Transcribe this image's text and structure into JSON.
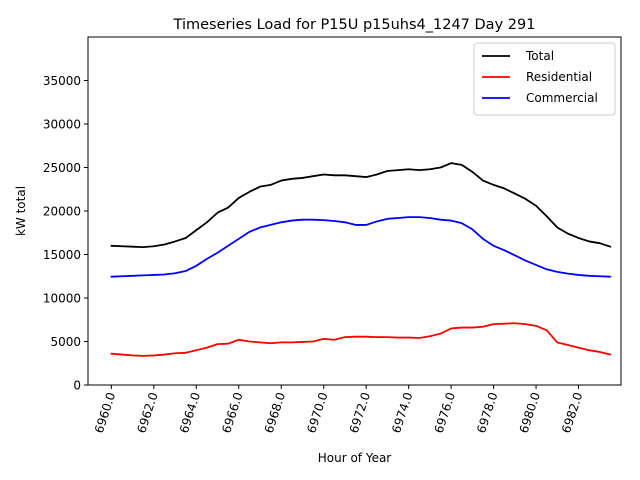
{
  "chart_data": {
    "type": "line",
    "title": "Timeseries Load for P15U p15uhs4_1247  Day 291",
    "xlabel": "Hour of Year",
    "ylabel": "kW total",
    "xlim": [
      6958.9,
      6984.0
    ],
    "ylim": [
      0,
      40000
    ],
    "xticks": [
      6960,
      6962,
      6964,
      6966,
      6968,
      6970,
      6972,
      6974,
      6976,
      6978,
      6980,
      6982
    ],
    "xtick_labels": [
      "6960.0",
      "6962.0",
      "6964.0",
      "6966.0",
      "6968.0",
      "6970.0",
      "6972.0",
      "6974.0",
      "6976.0",
      "6978.0",
      "6980.0",
      "6982.0"
    ],
    "yticks": [
      0,
      5000,
      10000,
      15000,
      20000,
      25000,
      30000,
      35000
    ],
    "ytick_labels": [
      "0",
      "5000",
      "10000",
      "15000",
      "20000",
      "25000",
      "30000",
      "35000"
    ],
    "legend_position": "top-right",
    "x": [
      6960.0,
      6960.5,
      6961.0,
      6961.5,
      6962.0,
      6962.5,
      6963.0,
      6963.5,
      6964.0,
      6964.5,
      6965.0,
      6965.5,
      6966.0,
      6966.5,
      6967.0,
      6967.5,
      6968.0,
      6968.5,
      6969.0,
      6969.5,
      6970.0,
      6970.5,
      6971.0,
      6971.5,
      6972.0,
      6972.5,
      6973.0,
      6973.5,
      6974.0,
      6974.5,
      6975.0,
      6975.5,
      6976.0,
      6976.5,
      6977.0,
      6977.5,
      6978.0,
      6978.5,
      6979.0,
      6979.5,
      6980.0,
      6980.5,
      6981.0,
      6981.5,
      6982.0,
      6982.5,
      6983.0,
      6983.5
    ],
    "series": [
      {
        "name": "Total",
        "color": "#000000",
        "values": [
          16000,
          15950,
          15900,
          15850,
          15950,
          16150,
          16500,
          16900,
          17800,
          18700,
          19800,
          20400,
          21500,
          22200,
          22800,
          23000,
          23500,
          23700,
          23800,
          24000,
          24200,
          24100,
          24100,
          24000,
          23900,
          24200,
          24600,
          24700,
          24800,
          24700,
          24800,
          25000,
          25500,
          25300,
          24500,
          23500,
          23000,
          22600,
          22000,
          21400,
          20600,
          19400,
          18100,
          17400,
          16900,
          16500,
          16300,
          15900
        ]
      },
      {
        "name": "Residential",
        "color": "#ff0000",
        "values": [
          3600,
          3500,
          3400,
          3350,
          3400,
          3500,
          3650,
          3700,
          4000,
          4300,
          4700,
          4750,
          5200,
          5000,
          4900,
          4800,
          4900,
          4900,
          4950,
          5000,
          5300,
          5200,
          5500,
          5550,
          5550,
          5500,
          5500,
          5450,
          5450,
          5400,
          5600,
          5900,
          6500,
          6600,
          6600,
          6700,
          7000,
          7050,
          7100,
          7000,
          6800,
          6300,
          4900,
          4600,
          4300,
          4000,
          3800,
          3500
        ]
      },
      {
        "name": "Commercial",
        "color": "#0000ff",
        "values": [
          12450,
          12500,
          12550,
          12600,
          12650,
          12700,
          12850,
          13100,
          13700,
          14500,
          15200,
          16000,
          16800,
          17600,
          18100,
          18400,
          18700,
          18900,
          19000,
          19000,
          18950,
          18850,
          18700,
          18400,
          18400,
          18800,
          19100,
          19200,
          19300,
          19300,
          19200,
          19000,
          18900,
          18600,
          17900,
          16800,
          16000,
          15500,
          14900,
          14300,
          13800,
          13300,
          13000,
          12800,
          12650,
          12550,
          12500,
          12450
        ]
      }
    ]
  }
}
